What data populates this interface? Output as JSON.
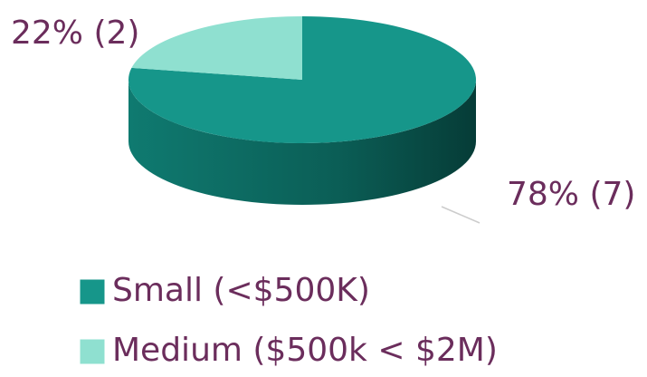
{
  "chart_data": {
    "type": "pie",
    "categories": [
      "Small (<$500K)",
      "Medium ($500k < $2M)"
    ],
    "values": [
      78,
      22
    ],
    "value_labels": [
      "78% (7)",
      "22% (2)"
    ],
    "colors": [
      "#16968a",
      "#8fe0d0"
    ],
    "legend": "bottom"
  }
}
